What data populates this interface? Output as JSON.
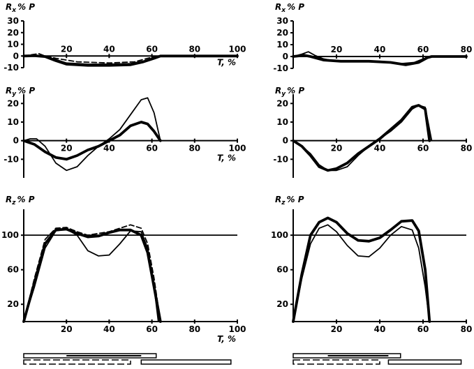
{
  "chart_data": [
    {
      "id": "top-left",
      "type": "line",
      "ylabel": "R",
      "ylabel_sub": "x",
      "ylabel_unit": "% P",
      "xlabel": "T, %",
      "xlim": [
        0,
        100
      ],
      "ylim": [
        -10,
        30
      ],
      "xticks": [
        20,
        40,
        60,
        80,
        100
      ],
      "yticks": [
        30,
        20,
        10,
        0,
        -10
      ],
      "x_tick_labels": [
        "20",
        "40",
        "60",
        "80",
        "100"
      ],
      "y_tick_labels": [
        "30",
        "20",
        "10",
        "0",
        "-10"
      ],
      "series": [
        {
          "style": "solid-thin",
          "points": [
            [
              0,
              0
            ],
            [
              5,
              0.3
            ],
            [
              10,
              0
            ],
            [
              15,
              -3
            ],
            [
              20,
              -6
            ],
            [
              30,
              -7
            ],
            [
              40,
              -7
            ],
            [
              50,
              -6.5
            ],
            [
              57,
              -4
            ],
            [
              62,
              -1
            ],
            [
              64,
              0
            ],
            [
              100,
              0
            ]
          ]
        },
        {
          "style": "solid-thick",
          "points": [
            [
              0,
              0
            ],
            [
              5,
              0.2
            ],
            [
              10,
              -0.5
            ],
            [
              15,
              -4
            ],
            [
              20,
              -7
            ],
            [
              30,
              -8
            ],
            [
              40,
              -8
            ],
            [
              50,
              -7.5
            ],
            [
              56,
              -5
            ],
            [
              61,
              -2
            ],
            [
              64,
              0
            ],
            [
              100,
              0
            ]
          ]
        },
        {
          "style": "dashed",
          "points": [
            [
              0,
              0
            ],
            [
              7,
              2
            ],
            [
              10,
              0
            ],
            [
              15,
              -2
            ],
            [
              25,
              -5
            ],
            [
              40,
              -6
            ],
            [
              52,
              -5
            ],
            [
              58,
              -2
            ],
            [
              63,
              0
            ],
            [
              100,
              0
            ]
          ]
        }
      ]
    },
    {
      "id": "top-right",
      "type": "line",
      "ylabel": "R",
      "ylabel_sub": "x",
      "ylabel_unit": "% P",
      "xlabel": "",
      "xlim": [
        0,
        80
      ],
      "ylim": [
        -10,
        30
      ],
      "xticks": [
        20,
        40,
        60,
        80
      ],
      "yticks": [
        30,
        20,
        10,
        0,
        -10
      ],
      "x_tick_labels": [
        "20",
        "40",
        "60",
        "80"
      ],
      "y_tick_labels": [
        "30",
        "20",
        "10",
        "0",
        "-10"
      ],
      "series": [
        {
          "style": "solid-thin",
          "points": [
            [
              0,
              0
            ],
            [
              4,
              2
            ],
            [
              7,
              4
            ],
            [
              10,
              1
            ],
            [
              14,
              -2
            ],
            [
              20,
              -4
            ],
            [
              30,
              -4
            ],
            [
              40,
              -4
            ],
            [
              50,
              -6
            ],
            [
              56,
              -5
            ],
            [
              60,
              -2
            ],
            [
              64,
              0
            ],
            [
              80,
              0
            ]
          ]
        },
        {
          "style": "solid-thick",
          "points": [
            [
              0,
              0
            ],
            [
              5,
              1
            ],
            [
              8,
              0
            ],
            [
              14,
              -3
            ],
            [
              22,
              -4
            ],
            [
              35,
              -4
            ],
            [
              45,
              -5
            ],
            [
              52,
              -7
            ],
            [
              58,
              -5
            ],
            [
              62,
              -1
            ],
            [
              64,
              0
            ],
            [
              80,
              0
            ]
          ]
        }
      ]
    },
    {
      "id": "middle-left",
      "type": "line",
      "ylabel": "R",
      "ylabel_sub": "y",
      "ylabel_unit": "% P",
      "xlabel": "T, %",
      "xlim": [
        0,
        100
      ],
      "ylim": [
        -20,
        25
      ],
      "xticks": [
        20,
        40,
        60,
        80,
        100
      ],
      "yticks": [
        20,
        10,
        0,
        -10
      ],
      "x_tick_labels": [
        "20",
        "40",
        "60",
        "80",
        "100"
      ],
      "y_tick_labels": [
        "20",
        "10",
        "0",
        "-10"
      ],
      "series": [
        {
          "style": "solid-thin",
          "points": [
            [
              0,
              0
            ],
            [
              3,
              1
            ],
            [
              6,
              1
            ],
            [
              10,
              -3
            ],
            [
              15,
              -12
            ],
            [
              20,
              -16
            ],
            [
              25,
              -14
            ],
            [
              30,
              -8
            ],
            [
              35,
              -3
            ],
            [
              40,
              1
            ],
            [
              45,
              6
            ],
            [
              50,
              14
            ],
            [
              55,
              22
            ],
            [
              58,
              23
            ],
            [
              61,
              15
            ],
            [
              64,
              0
            ]
          ]
        },
        {
          "style": "solid-thick",
          "points": [
            [
              0,
              0
            ],
            [
              5,
              -2
            ],
            [
              10,
              -6
            ],
            [
              15,
              -9
            ],
            [
              20,
              -10
            ],
            [
              25,
              -8
            ],
            [
              30,
              -5
            ],
            [
              35,
              -3
            ],
            [
              40,
              0
            ],
            [
              45,
              3
            ],
            [
              50,
              8
            ],
            [
              55,
              10
            ],
            [
              58,
              9
            ],
            [
              61,
              5
            ],
            [
              64,
              0
            ]
          ]
        }
      ]
    },
    {
      "id": "middle-right",
      "type": "line",
      "ylabel": "R",
      "ylabel_sub": "y",
      "ylabel_unit": "% P",
      "xlabel": "",
      "xlim": [
        0,
        80
      ],
      "ylim": [
        -20,
        25
      ],
      "xticks": [
        20,
        40,
        60,
        80
      ],
      "yticks": [
        20,
        10,
        0,
        -10
      ],
      "x_tick_labels": [
        "20",
        "40",
        "60",
        "80"
      ],
      "y_tick_labels": [
        "20",
        "10",
        "0",
        "-10"
      ],
      "series": [
        {
          "style": "solid-thin",
          "points": [
            [
              0,
              0
            ],
            [
              4,
              -3
            ],
            [
              8,
              -7
            ],
            [
              12,
              -13
            ],
            [
              16,
              -16
            ],
            [
              20,
              -16
            ],
            [
              25,
              -14
            ],
            [
              30,
              -8
            ],
            [
              35,
              -3
            ],
            [
              40,
              1
            ],
            [
              45,
              5
            ],
            [
              50,
              10
            ],
            [
              55,
              17
            ],
            [
              58,
              19
            ],
            [
              61,
              18
            ],
            [
              64,
              0
            ]
          ]
        },
        {
          "style": "solid-thick",
          "points": [
            [
              0,
              0
            ],
            [
              4,
              -3
            ],
            [
              8,
              -8
            ],
            [
              12,
              -14
            ],
            [
              16,
              -16
            ],
            [
              20,
              -15
            ],
            [
              25,
              -12
            ],
            [
              30,
              -7
            ],
            [
              35,
              -3
            ],
            [
              40,
              1
            ],
            [
              45,
              6
            ],
            [
              50,
              11
            ],
            [
              55,
              18
            ],
            [
              58,
              19
            ],
            [
              61,
              17
            ],
            [
              63,
              0
            ]
          ]
        }
      ]
    },
    {
      "id": "bottom-left",
      "type": "line",
      "ylabel": "R",
      "ylabel_sub": "z",
      "ylabel_unit": "% P",
      "xlabel": "T, %",
      "xlim": [
        0,
        100
      ],
      "ylim": [
        0,
        130
      ],
      "xticks": [
        20,
        40,
        60,
        80,
        100
      ],
      "yticks": [
        100,
        60,
        20
      ],
      "x_tick_labels": [
        "20",
        "40",
        "60",
        "80",
        "100"
      ],
      "y_tick_labels": [
        "100",
        "60",
        "20"
      ],
      "reference_line": 100,
      "series": [
        {
          "style": "solid-thin",
          "points": [
            [
              0,
              0
            ],
            [
              5,
              40
            ],
            [
              10,
              85
            ],
            [
              15,
              105
            ],
            [
              20,
              107
            ],
            [
              25,
              100
            ],
            [
              30,
              82
            ],
            [
              35,
              76
            ],
            [
              40,
              77
            ],
            [
              45,
              90
            ],
            [
              50,
              105
            ],
            [
              55,
              104
            ],
            [
              58,
              85
            ],
            [
              61,
              40
            ],
            [
              63,
              0
            ]
          ]
        },
        {
          "style": "solid-thick",
          "points": [
            [
              0,
              0
            ],
            [
              5,
              45
            ],
            [
              10,
              90
            ],
            [
              15,
              106
            ],
            [
              20,
              107
            ],
            [
              25,
              102
            ],
            [
              30,
              98
            ],
            [
              35,
              99
            ],
            [
              40,
              103
            ],
            [
              45,
              106
            ],
            [
              50,
              106
            ],
            [
              55,
              100
            ],
            [
              58,
              80
            ],
            [
              61,
              40
            ],
            [
              64,
              0
            ]
          ]
        },
        {
          "style": "dashed",
          "points": [
            [
              0,
              0
            ],
            [
              5,
              50
            ],
            [
              10,
              95
            ],
            [
              15,
              108
            ],
            [
              20,
              109
            ],
            [
              25,
              104
            ],
            [
              30,
              100
            ],
            [
              35,
              102
            ],
            [
              40,
              104
            ],
            [
              45,
              108
            ],
            [
              50,
              112
            ],
            [
              55,
              108
            ],
            [
              58,
              90
            ],
            [
              61,
              50
            ],
            [
              64,
              0
            ]
          ]
        }
      ]
    },
    {
      "id": "bottom-right",
      "type": "line",
      "ylabel": "R",
      "ylabel_sub": "z",
      "ylabel_unit": "% P",
      "xlabel": "",
      "xlim": [
        0,
        80
      ],
      "ylim": [
        0,
        130
      ],
      "xticks": [
        20,
        40,
        60,
        80
      ],
      "yticks": [
        100,
        60,
        20
      ],
      "x_tick_labels": [
        "20",
        "40",
        "60",
        "80"
      ],
      "y_tick_labels": [
        "100",
        "60",
        "20"
      ],
      "reference_line": 100,
      "series": [
        {
          "style": "solid-thin",
          "points": [
            [
              0,
              0
            ],
            [
              4,
              50
            ],
            [
              8,
              90
            ],
            [
              12,
              108
            ],
            [
              16,
              112
            ],
            [
              20,
              104
            ],
            [
              25,
              88
            ],
            [
              30,
              76
            ],
            [
              35,
              75
            ],
            [
              40,
              85
            ],
            [
              45,
              100
            ],
            [
              50,
              110
            ],
            [
              55,
              106
            ],
            [
              58,
              85
            ],
            [
              61,
              40
            ],
            [
              63,
              0
            ]
          ]
        },
        {
          "style": "solid-thick",
          "points": [
            [
              0,
              0
            ],
            [
              4,
              55
            ],
            [
              8,
              100
            ],
            [
              12,
              115
            ],
            [
              16,
              120
            ],
            [
              20,
              115
            ],
            [
              25,
              102
            ],
            [
              30,
              94
            ],
            [
              35,
              93
            ],
            [
              40,
              97
            ],
            [
              45,
              106
            ],
            [
              50,
              116
            ],
            [
              55,
              117
            ],
            [
              58,
              105
            ],
            [
              61,
              60
            ],
            [
              63,
              0
            ]
          ]
        }
      ]
    }
  ],
  "gait_bars": [
    {
      "id": "left"
    },
    {
      "id": "right"
    }
  ]
}
